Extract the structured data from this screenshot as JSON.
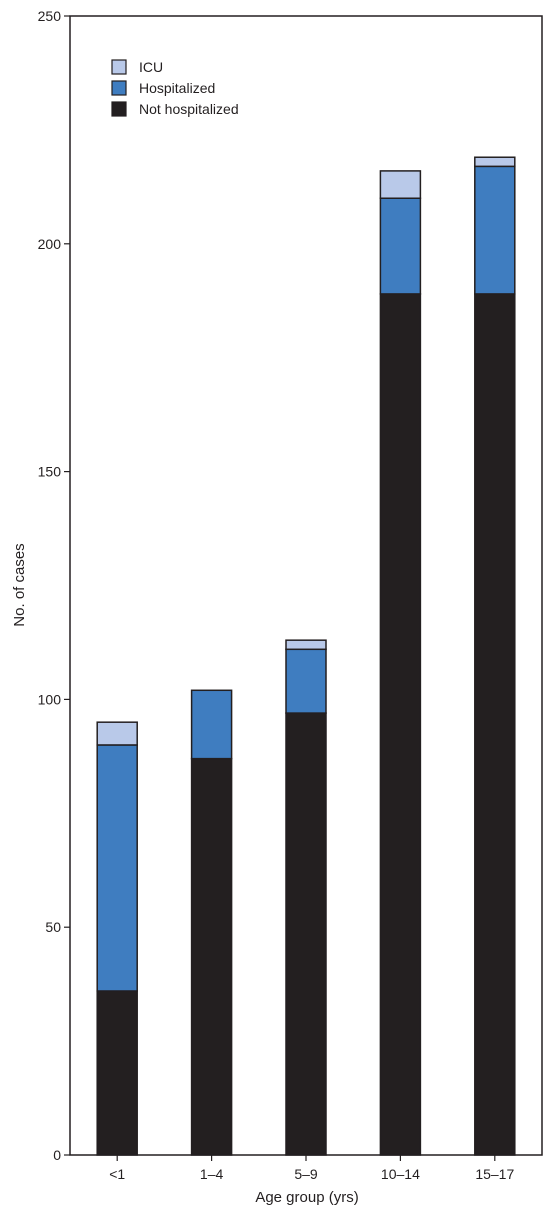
{
  "chart_data": {
    "type": "bar",
    "stacked": true,
    "categories": [
      "<1",
      "1–4",
      "5–9",
      "10–14",
      "15–17"
    ],
    "series": [
      {
        "name": "Not hospitalized",
        "color": "#231f20",
        "values": [
          36,
          87,
          97,
          189,
          189
        ]
      },
      {
        "name": "Hospitalized",
        "color": "#3f7dc0",
        "values": [
          54,
          15,
          14,
          21,
          28
        ]
      },
      {
        "name": "ICU",
        "color": "#b9c9e9",
        "values": [
          5,
          0,
          2,
          6,
          2
        ]
      }
    ],
    "legend_order": [
      "ICU",
      "Hospitalized",
      "Not hospitalized"
    ],
    "legend_position": "top-left",
    "xlabel": "Age group (yrs)",
    "ylabel": "No. of cases",
    "ylim": [
      0,
      250
    ],
    "yticks": [
      0,
      50,
      100,
      150,
      200,
      250
    ],
    "grid": false
  }
}
